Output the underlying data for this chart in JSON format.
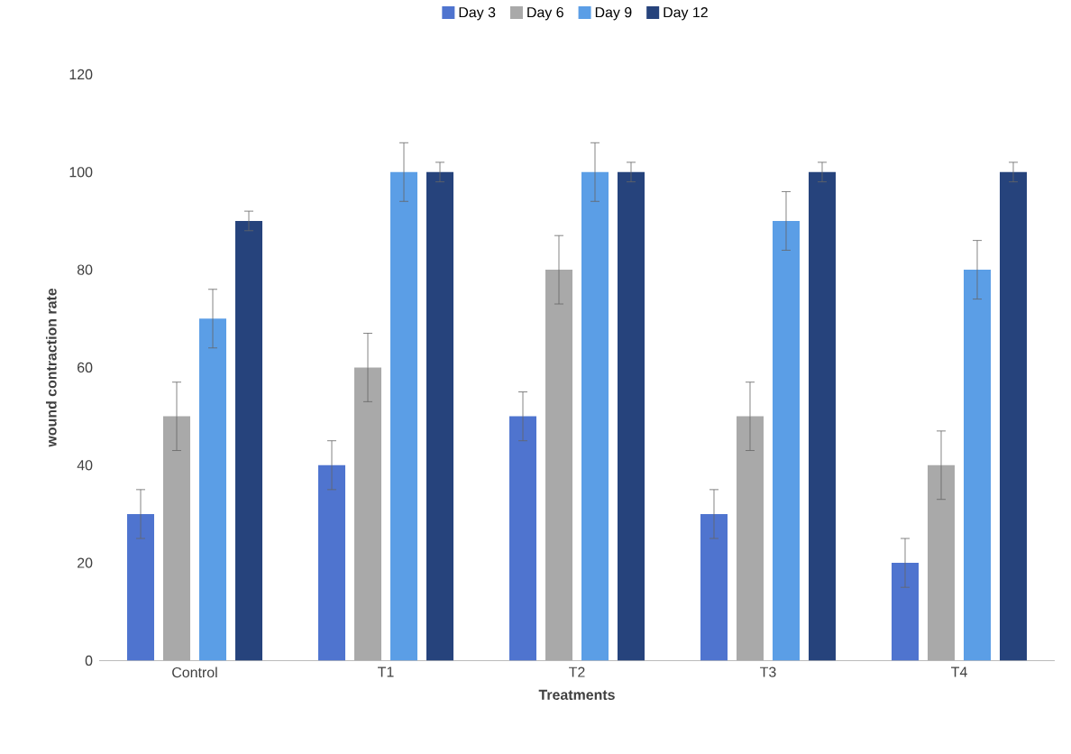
{
  "chart_data": {
    "type": "bar",
    "xlabel": "Treatments",
    "ylabel": "wound contraction rate",
    "categories": [
      "Control",
      "T1",
      "T2",
      "T3",
      "T4"
    ],
    "series": [
      {
        "name": "Day 3",
        "color": "#4f74cf",
        "values": [
          30,
          40,
          50,
          30,
          20
        ],
        "errors": [
          5,
          5,
          5,
          5,
          5
        ]
      },
      {
        "name": "Day 6",
        "color": "#a9a9a9",
        "values": [
          50,
          60,
          80,
          50,
          40
        ],
        "errors": [
          7,
          7,
          7,
          7,
          7
        ]
      },
      {
        "name": "Day 9",
        "color": "#5b9ee6",
        "values": [
          70,
          100,
          100,
          90,
          80
        ],
        "errors": [
          6,
          6,
          6,
          6,
          6
        ]
      },
      {
        "name": "Day 12",
        "color": "#26437c",
        "values": [
          90,
          100,
          100,
          100,
          100
        ],
        "errors": [
          2,
          2,
          2,
          2,
          2
        ]
      }
    ],
    "ylim": [
      0,
      120
    ],
    "yticks": [
      0,
      20,
      40,
      60,
      80,
      100,
      120
    ],
    "grid": false,
    "legend": "top"
  }
}
